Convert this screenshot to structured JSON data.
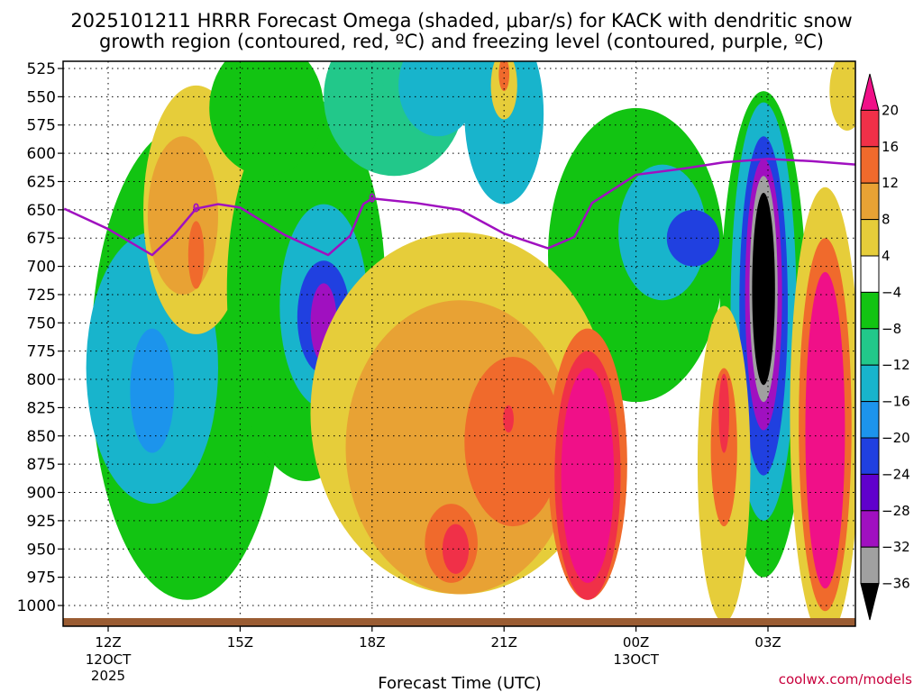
{
  "chart_data": {
    "type": "heatmap",
    "title_line1": "2025101211 HRRR Forecast Omega (shaded, μbar/s) for KACK with dendritic snow",
    "title_line2": "growth region (contoured, red, ºC) and freezing level (contoured, purple, ºC)",
    "xlabel": "Forecast Time (UTC)",
    "ylabel": "",
    "x_range_hours": [
      11,
      29
    ],
    "y_levels": [
      "525",
      "550",
      "575",
      "600",
      "625",
      "650",
      "675",
      "700",
      "725",
      "750",
      "775",
      "800",
      "825",
      "850",
      "875",
      "900",
      "925",
      "950",
      "975",
      "1000"
    ],
    "x_ticks": [
      {
        "hour": 12,
        "label": "12Z",
        "sub1": "12OCT",
        "sub2": "2025"
      },
      {
        "hour": 15,
        "label": "15Z",
        "sub1": "",
        "sub2": ""
      },
      {
        "hour": 18,
        "label": "18Z",
        "sub1": "",
        "sub2": ""
      },
      {
        "hour": 21,
        "label": "21Z",
        "sub1": "",
        "sub2": ""
      },
      {
        "hour": 24,
        "label": "00Z",
        "sub1": "13OCT",
        "sub2": ""
      },
      {
        "hour": 27,
        "label": "03Z",
        "sub1": "",
        "sub2": ""
      }
    ],
    "colorbar": {
      "labels": [
        "20",
        "16",
        "12",
        "8",
        "4",
        "−4",
        "−8",
        "−12",
        "−16",
        "−20",
        "−24",
        "−28",
        "−32",
        "−36"
      ],
      "colors": [
        "#f01088",
        "#f03048",
        "#f06a2c",
        "#e8a234",
        "#e6cd3a",
        "#ffffff",
        "#12c412",
        "#22c88a",
        "#18b4cc",
        "#1c94ec",
        "#2040e0",
        "#6000cc",
        "#a010c0",
        "#a0a0a0",
        "#000000"
      ]
    },
    "freezing_level_label": "0",
    "freezing_level": [
      {
        "hour": 11.0,
        "p": 649
      },
      {
        "hour": 12.0,
        "p": 667
      },
      {
        "hour": 13.0,
        "p": 690
      },
      {
        "hour": 13.5,
        "p": 672
      },
      {
        "hour": 14.0,
        "p": 649
      },
      {
        "hour": 14.5,
        "p": 645
      },
      {
        "hour": 15.0,
        "p": 648
      },
      {
        "hour": 16.0,
        "p": 672
      },
      {
        "hour": 17.0,
        "p": 690
      },
      {
        "hour": 17.5,
        "p": 673
      },
      {
        "hour": 17.8,
        "p": 645
      },
      {
        "hour": 18.0,
        "p": 640
      },
      {
        "hour": 19.0,
        "p": 644
      },
      {
        "hour": 20.0,
        "p": 650
      },
      {
        "hour": 21.0,
        "p": 671
      },
      {
        "hour": 22.0,
        "p": 684
      },
      {
        "hour": 22.6,
        "p": 674
      },
      {
        "hour": 23.0,
        "p": 644
      },
      {
        "hour": 24.0,
        "p": 619
      },
      {
        "hour": 25.0,
        "p": 614
      },
      {
        "hour": 26.0,
        "p": 608
      },
      {
        "hour": 27.0,
        "p": 605
      },
      {
        "hour": 28.0,
        "p": 607
      },
      {
        "hour": 29.0,
        "p": 610
      }
    ],
    "omega_regions": [
      {
        "v": -6,
        "hour": 13.8,
        "p": 785,
        "rx": 2.2,
        "ry": 210
      },
      {
        "v": -12,
        "hour": 13.0,
        "p": 790,
        "rx": 1.5,
        "ry": 120
      },
      {
        "v": -16,
        "hour": 13.0,
        "p": 810,
        "rx": 0.5,
        "ry": 55
      },
      {
        "v": 6,
        "hour": 14.0,
        "p": 650,
        "rx": 1.2,
        "ry": 110
      },
      {
        "v": 8,
        "hour": 13.7,
        "p": 655,
        "rx": 0.8,
        "ry": 70
      },
      {
        "v": 12,
        "hour": 14.0,
        "p": 690,
        "rx": 0.18,
        "ry": 30
      },
      {
        "v": -6,
        "hour": 16.5,
        "p": 720,
        "rx": 1.8,
        "ry": 170
      },
      {
        "v": -12,
        "hour": 16.9,
        "p": 735,
        "rx": 1.0,
        "ry": 90
      },
      {
        "v": -20,
        "hour": 16.9,
        "p": 745,
        "rx": 0.6,
        "ry": 50
      },
      {
        "v": -28,
        "hour": 16.9,
        "p": 750,
        "rx": 0.3,
        "ry": 35
      },
      {
        "v": -6,
        "hour": 15.6,
        "p": 560,
        "rx": 1.3,
        "ry": 60
      },
      {
        "v": -8,
        "hour": 18.5,
        "p": 550,
        "rx": 1.6,
        "ry": 70
      },
      {
        "v": -10,
        "hour": 19.2,
        "p": 530,
        "rx": 1.0,
        "ry": 30
      },
      {
        "v": -14,
        "hour": 19.5,
        "p": 540,
        "rx": 0.9,
        "ry": 45
      },
      {
        "v": -12,
        "hour": 21.0,
        "p": 565,
        "rx": 0.9,
        "ry": 80
      },
      {
        "v": 6,
        "hour": 21.0,
        "p": 540,
        "rx": 0.3,
        "ry": 30
      },
      {
        "v": 12,
        "hour": 21.0,
        "p": 530,
        "rx": 0.12,
        "ry": 15
      },
      {
        "v": -6,
        "hour": 24.0,
        "p": 690,
        "rx": 2.0,
        "ry": 130
      },
      {
        "v": -12,
        "hour": 24.6,
        "p": 670,
        "rx": 1.0,
        "ry": 60
      },
      {
        "v": -20,
        "hour": 25.3,
        "p": 675,
        "rx": 0.6,
        "ry": 25
      },
      {
        "v": -6,
        "hour": 26.9,
        "p": 760,
        "rx": 1.0,
        "ry": 215
      },
      {
        "v": -12,
        "hour": 26.9,
        "p": 740,
        "rx": 0.75,
        "ry": 185
      },
      {
        "v": -20,
        "hour": 26.9,
        "p": 735,
        "rx": 0.55,
        "ry": 150
      },
      {
        "v": -28,
        "hour": 26.9,
        "p": 725,
        "rx": 0.42,
        "ry": 120
      },
      {
        "v": -32,
        "hour": 26.9,
        "p": 720,
        "rx": 0.32,
        "ry": 100
      },
      {
        "v": -36,
        "hour": 26.9,
        "p": 720,
        "rx": 0.26,
        "ry": 85
      },
      {
        "v": 6,
        "hour": 20.0,
        "p": 830,
        "rx": 3.4,
        "ry": 160
      },
      {
        "v": 8,
        "hour": 20.0,
        "p": 860,
        "rx": 2.6,
        "ry": 130
      },
      {
        "v": 12,
        "hour": 21.2,
        "p": 855,
        "rx": 1.1,
        "ry": 75
      },
      {
        "v": 16,
        "hour": 21.1,
        "p": 835,
        "rx": 0.12,
        "ry": 12
      },
      {
        "v": 12,
        "hour": 19.8,
        "p": 945,
        "rx": 0.6,
        "ry": 35
      },
      {
        "v": 16,
        "hour": 19.9,
        "p": 950,
        "rx": 0.3,
        "ry": 22
      },
      {
        "v": 12,
        "hour": 22.9,
        "p": 875,
        "rx": 0.9,
        "ry": 120
      },
      {
        "v": 16,
        "hour": 22.9,
        "p": 885,
        "rx": 0.75,
        "ry": 110
      },
      {
        "v": 20,
        "hour": 22.9,
        "p": 885,
        "rx": 0.6,
        "ry": 95
      },
      {
        "v": 6,
        "hour": 26.0,
        "p": 875,
        "rx": 0.6,
        "ry": 140
      },
      {
        "v": 12,
        "hour": 26.0,
        "p": 860,
        "rx": 0.3,
        "ry": 70
      },
      {
        "v": 16,
        "hour": 26.0,
        "p": 830,
        "rx": 0.12,
        "ry": 35
      },
      {
        "v": 6,
        "hour": 28.3,
        "p": 830,
        "rx": 0.8,
        "ry": 200
      },
      {
        "v": 12,
        "hour": 28.3,
        "p": 840,
        "rx": 0.6,
        "ry": 165
      },
      {
        "v": 20,
        "hour": 28.3,
        "p": 845,
        "rx": 0.45,
        "ry": 140
      },
      {
        "v": 6,
        "hour": 28.8,
        "p": 545,
        "rx": 0.4,
        "ry": 35
      }
    ]
  },
  "credit": "coolwx.com/models"
}
